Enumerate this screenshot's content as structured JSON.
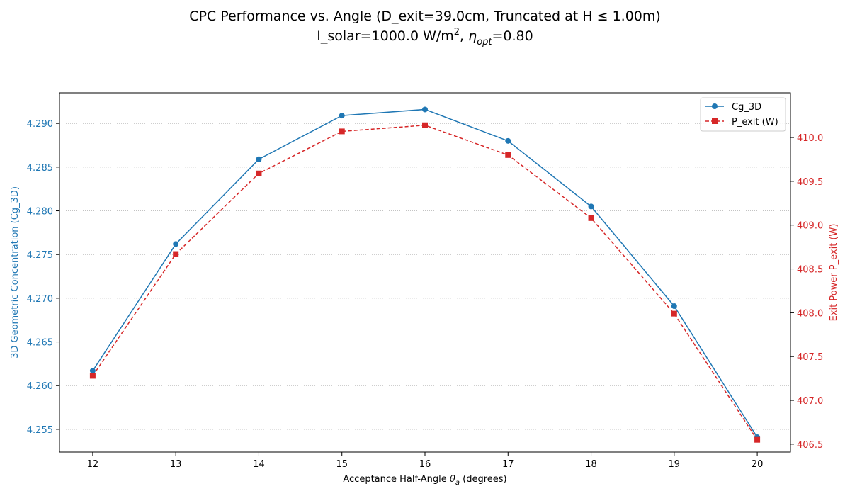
{
  "chart_data": {
    "type": "line",
    "title": "CPC Performance vs. Angle (D_exit=39.0cm, Truncated at H ≤ 1.00m)",
    "subtitle": {
      "prefix": "I_solar=1000.0 W/m",
      "sup": "2",
      "mid": ", ",
      "eta": "η",
      "eta_sub": "opt",
      "suffix": "=0.80"
    },
    "xlabel": {
      "prefix": "Acceptance Half-Angle ",
      "theta": "θ",
      "theta_sub": "a",
      "suffix": " (degrees)"
    },
    "ylabel_left": "3D Geometric Concentration (Cg_3D)",
    "ylabel_right": "Exit Power P_exit (W)",
    "xlim": [
      11.6,
      20.4
    ],
    "ylim_left": [
      4.2524,
      4.2935
    ],
    "ylim_right": [
      406.41,
      410.51
    ],
    "x_ticks": [
      "12",
      "13",
      "14",
      "15",
      "16",
      "17",
      "18",
      "19",
      "20"
    ],
    "y_left_ticks": [
      "4.255",
      "4.260",
      "4.265",
      "4.270",
      "4.275",
      "4.280",
      "4.285",
      "4.290"
    ],
    "y_right_ticks": [
      "406.5",
      "407.0",
      "407.5",
      "408.0",
      "408.5",
      "409.0",
      "409.5",
      "410.0"
    ],
    "grid": "horizontal dotted",
    "legend_position": "top-right",
    "x": [
      12,
      13,
      14,
      15,
      16,
      17,
      18,
      19,
      20
    ],
    "series": [
      {
        "name": "Cg_3D",
        "axis": "left",
        "color": "#1f77b4",
        "marker": "circle",
        "linestyle": "solid",
        "values": [
          4.2617,
          4.2762,
          4.2859,
          4.2909,
          4.2916,
          4.288,
          4.2805,
          4.2691,
          4.2541
        ]
      },
      {
        "name": "P_exit (W)",
        "axis": "right",
        "color": "#d62728",
        "marker": "square",
        "linestyle": "dashed",
        "values": [
          407.28,
          408.67,
          409.59,
          410.07,
          410.14,
          409.8,
          409.08,
          407.99,
          406.55
        ]
      }
    ],
    "colors": {
      "left_axis": "#1f77b4",
      "right_axis": "#d62728",
      "grid": "#b0b0b0"
    }
  }
}
